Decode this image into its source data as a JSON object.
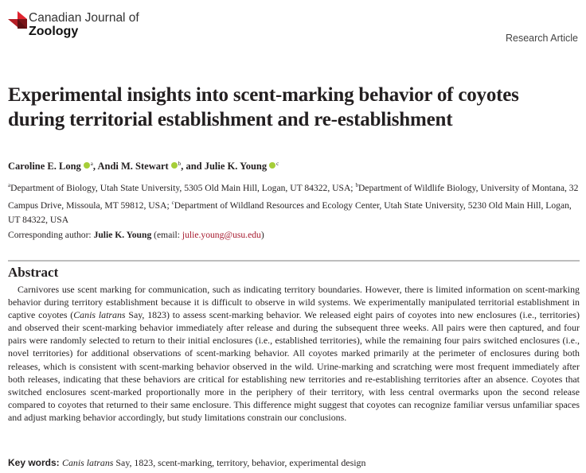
{
  "journal": {
    "name_line1": "Canadian Journal of",
    "name_line2": "Zoology",
    "brand_color": "#c8202f"
  },
  "article_type": "Research Article",
  "title": "Experimental insights into scent-marking behavior of coyotes during territorial establishment and re-establishment",
  "authors": [
    {
      "name": "Caroline E. Long",
      "sup": "a",
      "sep": ", "
    },
    {
      "name": "Andi M. Stewart",
      "sup": "b",
      "sep": ", and "
    },
    {
      "name": "Julie K. Young",
      "sup": "c",
      "sep": ""
    }
  ],
  "affiliations": {
    "a_sup": "a",
    "a": "Department of Biology, Utah State University, 5305 Old Main Hill, Logan, UT 84322, USA; ",
    "b_sup": "b",
    "b": "Department of Wildlife Biology, University of Montana, 32 Campus Drive, Missoula, MT 59812, USA; ",
    "c_sup": "c",
    "c": "Department of Wildland Resources and Ecology Center, Utah State University, 5230 Old Main Hill, Logan, UT 84322, USA"
  },
  "corresponding": {
    "label": "Corresponding author: ",
    "name": "Julie K. Young",
    "email_prefix": " (email: ",
    "email": "julie.young@usu.edu",
    "email_suffix": ")"
  },
  "abstract": {
    "heading": "Abstract",
    "part1": "Carnivores use scent marking for communication, such as indicating territory boundaries. However, there is limited information on scent-marking behavior during territory establishment because it is difficult to observe in wild systems. We experimentally manipulated territorial establishment in captive coyotes (",
    "italic": "Canis latrans",
    "part2": " Say, 1823) to assess scent-marking behavior. We released eight pairs of coyotes into new enclosures (i.e., territories) and observed their scent-marking behavior immediately after release and during the subsequent three weeks. All pairs were then captured, and four pairs were randomly selected to return to their initial enclosures (i.e., established territories), while the remaining four pairs switched enclosures (i.e., novel territories) for additional observations of scent-marking behavior. All coyotes marked primarily at the perimeter of enclosures during both releases, which is consistent with scent-marking behavior observed in the wild. Urine-marking and scratching were most frequent immediately after both releases, indicating that these behaviors are critical for establishing new territories and re-establishing territories after an absence. Coyotes that switched enclosures scent-marked proportionally more in the periphery of their territory, with less central overmarks upon the second release compared to coyotes that returned to their same enclosure. This difference might suggest that coyotes can recognize familiar versus unfamiliar spaces and adjust marking behavior accordingly, but study limitations constrain our conclusions."
  },
  "keywords": {
    "label": "Key words: ",
    "italic": "Canis latrans",
    "rest": " Say, 1823, scent-marking, territory, behavior, experimental design"
  }
}
